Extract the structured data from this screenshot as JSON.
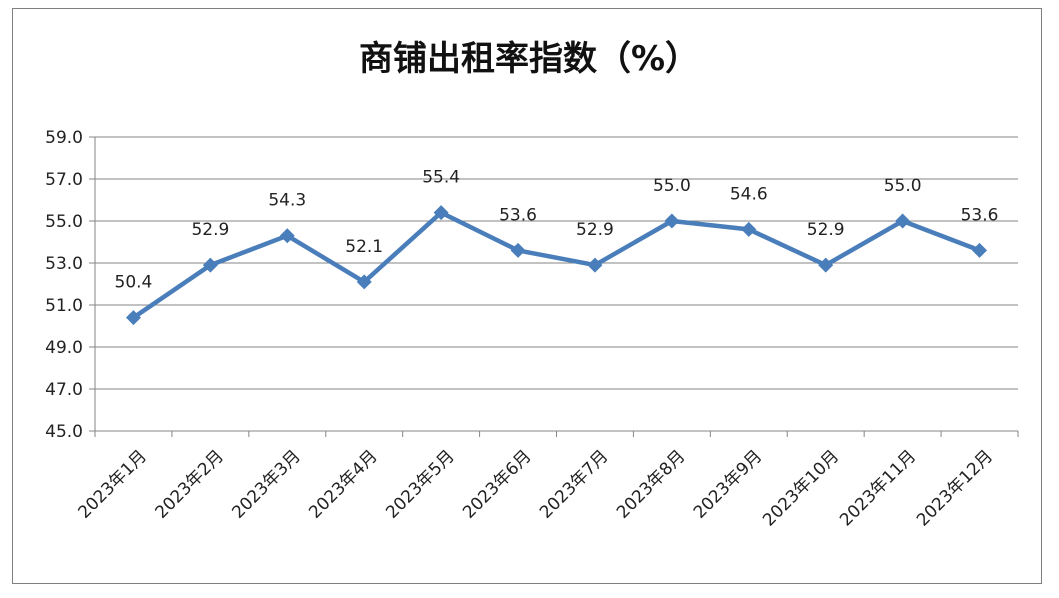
{
  "chart_data": {
    "type": "line",
    "title": "商铺出租率指数（%）",
    "categories": [
      "2023年1月",
      "2023年2月",
      "2023年3月",
      "2023年4月",
      "2023年5月",
      "2023年6月",
      "2023年7月",
      "2023年8月",
      "2023年9月",
      "2023年10月",
      "2023年11月",
      "2023年12月"
    ],
    "series": [
      {
        "values": [
          50.4,
          52.9,
          54.3,
          52.1,
          55.4,
          53.6,
          52.9,
          55.0,
          54.6,
          52.9,
          55.0,
          53.6
        ]
      }
    ],
    "data_labels": [
      "50.4",
      "52.9",
      "54.3",
      "52.1",
      "55.4",
      "53.6",
      "52.9",
      "55.0",
      "54.6",
      "52.9",
      "55.0",
      "53.6"
    ],
    "y_ticks": [
      "45.0",
      "47.0",
      "49.0",
      "51.0",
      "53.0",
      "55.0",
      "57.0",
      "59.0"
    ],
    "ylim": [
      45.0,
      59.0
    ],
    "xlabel": "",
    "ylabel": "",
    "grid": true,
    "legend": "none",
    "line_color": "#4a7ebb",
    "marker": "diamond"
  }
}
